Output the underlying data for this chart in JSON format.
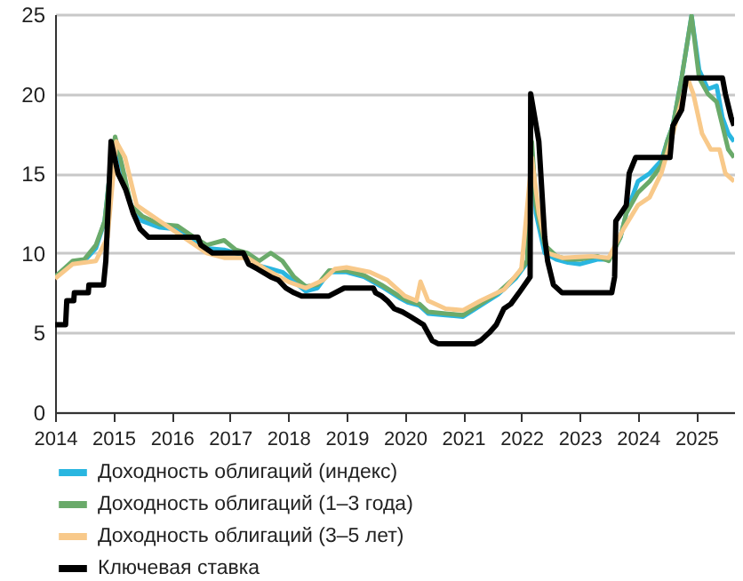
{
  "chart_data": {
    "type": "line",
    "xlim": [
      2014,
      2025.65
    ],
    "xticks": [
      2014,
      2015,
      2016,
      2017,
      2018,
      2019,
      2020,
      2021,
      2022,
      2023,
      2024,
      2025
    ],
    "ylim": [
      0,
      25
    ],
    "yticks": [
      0,
      5,
      10,
      15,
      20,
      25
    ],
    "grid": "y",
    "legend": "bottom",
    "line_style": "solid",
    "series": [
      {
        "name": "Доходность облигаций (индекс)",
        "color": "#29b6e0",
        "x": [
          2014,
          2014.3,
          2014.5,
          2014.7,
          2014.85,
          2014.97,
          2015.03,
          2015.15,
          2015.3,
          2015.5,
          2015.8,
          2016.1,
          2016.3,
          2016.6,
          2016.9,
          2017.1,
          2017.3,
          2017.5,
          2017.7,
          2017.9,
          2018.1,
          2018.3,
          2018.5,
          2018.7,
          2019,
          2019.3,
          2019.6,
          2019.9,
          2020.05,
          2020.25,
          2020.4,
          2020.7,
          2021,
          2021.3,
          2021.6,
          2021.9,
          2022.1,
          2022.18,
          2022.25,
          2022.4,
          2022.6,
          2022.8,
          2023,
          2023.3,
          2023.5,
          2023.7,
          2023.8,
          2024,
          2024.2,
          2024.4,
          2024.5,
          2024.6,
          2024.75,
          2024.92,
          2025.05,
          2025.2,
          2025.35,
          2025.45,
          2025.55,
          2025.65
        ],
        "values": [
          8.5,
          9.4,
          9.5,
          10.3,
          12,
          16,
          17,
          15.3,
          13,
          12,
          11.6,
          11.5,
          11,
          10.3,
          10.2,
          10,
          9.8,
          9.2,
          9,
          8.8,
          8.2,
          7.6,
          7.8,
          8.8,
          8.8,
          8.5,
          7.9,
          7.2,
          6.9,
          6.7,
          6.2,
          6.1,
          6,
          6.7,
          7.4,
          8.4,
          9.4,
          16.5,
          12.5,
          10,
          9.6,
          9.4,
          9.3,
          9.6,
          9.6,
          11,
          12.5,
          14.5,
          15,
          15.8,
          17,
          18,
          21,
          24.9,
          21.5,
          20.3,
          20.5,
          18.5,
          17.5,
          17
        ]
      },
      {
        "name": "Доходность облигаций (1–3 года)",
        "color": "#6aaa6a",
        "x": [
          2014,
          2014.3,
          2014.5,
          2014.7,
          2014.85,
          2014.97,
          2015.03,
          2015.15,
          2015.3,
          2015.5,
          2015.8,
          2016.1,
          2016.3,
          2016.6,
          2016.9,
          2017.1,
          2017.3,
          2017.5,
          2017.7,
          2017.9,
          2018.1,
          2018.3,
          2018.5,
          2018.7,
          2019,
          2019.3,
          2019.6,
          2019.9,
          2020.05,
          2020.25,
          2020.4,
          2020.7,
          2021,
          2021.3,
          2021.6,
          2021.9,
          2022.1,
          2022.18,
          2022.25,
          2022.4,
          2022.6,
          2022.8,
          2023,
          2023.3,
          2023.5,
          2023.7,
          2023.8,
          2024,
          2024.2,
          2024.4,
          2024.5,
          2024.6,
          2024.75,
          2024.92,
          2025.05,
          2025.2,
          2025.35,
          2025.45,
          2025.55,
          2025.65
        ],
        "values": [
          8.5,
          9.5,
          9.6,
          10.5,
          12,
          16,
          17.3,
          15.5,
          13,
          12.3,
          11.8,
          11.7,
          11.2,
          10.5,
          10.8,
          10.2,
          10,
          9.5,
          10,
          9.5,
          8.5,
          7.9,
          8,
          8.9,
          8.9,
          8.6,
          8,
          7.3,
          7,
          6.8,
          6.3,
          6.2,
          6.1,
          6.8,
          7.5,
          8.5,
          9.5,
          17,
          13,
          10.5,
          9.8,
          9.6,
          9.6,
          9.8,
          9.5,
          11,
          12.5,
          13.8,
          14.5,
          15.5,
          17,
          18,
          21,
          24.9,
          21,
          20,
          19.5,
          18,
          16.5,
          16
        ]
      },
      {
        "name": "Доходность облигаций (3–5 лет)",
        "color": "#f8c98a",
        "x": [
          2014,
          2014.3,
          2014.7,
          2014.9,
          2015.05,
          2015.2,
          2015.4,
          2015.6,
          2015.8,
          2016.2,
          2016.6,
          2016.9,
          2017.3,
          2017.6,
          2018,
          2018.3,
          2018.6,
          2018.8,
          2019,
          2019.4,
          2019.7,
          2020,
          2020.2,
          2020.27,
          2020.4,
          2020.7,
          2021,
          2021.3,
          2021.7,
          2022,
          2022.18,
          2022.3,
          2022.45,
          2022.7,
          2023.2,
          2023.5,
          2023.75,
          2024,
          2024.2,
          2024.4,
          2024.6,
          2024.85,
          2024.95,
          2025.1,
          2025.25,
          2025.4,
          2025.5,
          2025.65
        ],
        "values": [
          8.4,
          9.3,
          9.5,
          11,
          17,
          16,
          13,
          12.5,
          12,
          11,
          10,
          9.7,
          9.7,
          9,
          8.2,
          7.8,
          8.3,
          9,
          9.1,
          8.8,
          8.3,
          7.3,
          7,
          8.2,
          7,
          6.5,
          6.4,
          7,
          7.7,
          9,
          16,
          12.5,
          10,
          9.7,
          9.8,
          9.7,
          11.5,
          13,
          13.5,
          15,
          17.5,
          21,
          20,
          17.5,
          16.5,
          16.5,
          15,
          14.5
        ]
      },
      {
        "name": "Ключевая ставка",
        "color": "#000000",
        "x": [
          2014,
          2014.18,
          2014.2,
          2014.32,
          2014.33,
          2014.57,
          2014.58,
          2014.83,
          2014.87,
          2014.96,
          2015.08,
          2015.21,
          2015.34,
          2015.46,
          2015.6,
          2016.45,
          2016.5,
          2016.7,
          2017.23,
          2017.32,
          2017.47,
          2017.7,
          2017.83,
          2017.96,
          2018.1,
          2018.23,
          2018.7,
          2018.96,
          2019.46,
          2019.5,
          2019.6,
          2019.7,
          2019.82,
          2019.96,
          2020.1,
          2020.32,
          2020.47,
          2020.57,
          2021.2,
          2021.3,
          2021.45,
          2021.57,
          2021.7,
          2021.82,
          2021.96,
          2022.15,
          2022.16,
          2022.3,
          2022.35,
          2022.4,
          2022.45,
          2022.55,
          2022.7,
          2023.55,
          2023.6,
          2023.62,
          2023.8,
          2023.85,
          2023.96,
          2024.55,
          2024.6,
          2024.75,
          2024.83,
          2025.45,
          2025.5,
          2025.6,
          2025.65
        ],
        "values": [
          5.5,
          5.5,
          7,
          7,
          7.5,
          7.5,
          8,
          8,
          9.5,
          17,
          15,
          14,
          12.5,
          11.5,
          11,
          11,
          10.5,
          10,
          10,
          9.3,
          9,
          8.5,
          8.3,
          7.8,
          7.5,
          7.3,
          7.3,
          7.8,
          7.8,
          7.5,
          7.3,
          7,
          6.5,
          6.3,
          6,
          5.5,
          4.5,
          4.3,
          4.3,
          4.5,
          5,
          5.5,
          6.5,
          6.8,
          7.5,
          8.5,
          20,
          17,
          14,
          11,
          9.5,
          8,
          7.5,
          7.5,
          8.5,
          12,
          13,
          15,
          16,
          16,
          18,
          19,
          21,
          21,
          20,
          18.5,
          18
        ]
      }
    ]
  }
}
